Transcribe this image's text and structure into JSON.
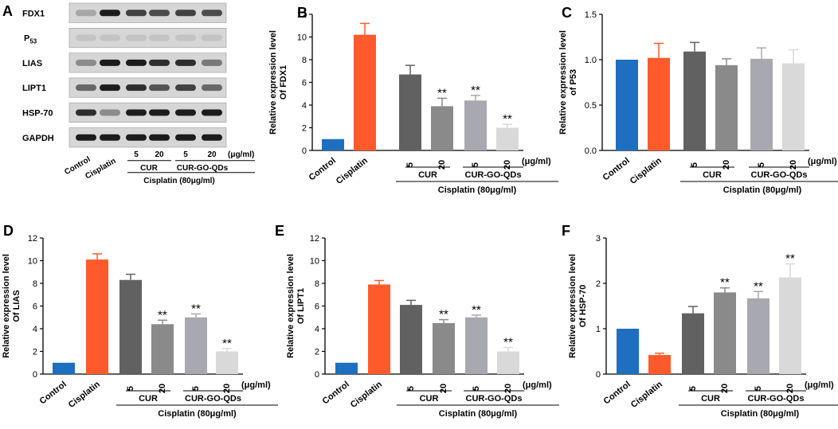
{
  "colors": {
    "control": "#1f6fc0",
    "cisplatin": "#ff5a2b",
    "cur5": "#616161",
    "cur20": "#8a8a8a",
    "qd5": "#a8a8b0",
    "qd20": "#d9d9d9",
    "blotBg": "#d6d6d6",
    "band": "#1c1c1c"
  },
  "shared": {
    "categories": [
      "Control",
      "Cisplatin",
      "5",
      "20",
      "5",
      "20"
    ],
    "unit": "(μg/ml)",
    "group_cur": "CUR",
    "group_qd": "CUR-GO-QDs",
    "treatment": "Cisplatin (80μg/ml)",
    "sig": "**"
  },
  "blot": {
    "panel": "A",
    "proteins": [
      "FDX1",
      "P53",
      "LIAS",
      "LIPT1",
      "HSP-70",
      "GAPDH"
    ],
    "lanes": [
      "Control",
      "Cisplatin",
      "5",
      "20",
      "5",
      "20"
    ],
    "intensities": [
      [
        0.25,
        1.0,
        0.8,
        0.75,
        0.8,
        0.75
      ],
      [
        0.1,
        0.1,
        0.1,
        0.1,
        0.1,
        0.1
      ],
      [
        0.4,
        1.0,
        1.0,
        0.9,
        0.9,
        0.5
      ],
      [
        0.6,
        1.0,
        0.9,
        0.7,
        0.8,
        0.6
      ],
      [
        0.9,
        0.4,
        1.0,
        1.0,
        1.0,
        1.0
      ],
      [
        1.0,
        1.0,
        1.0,
        1.0,
        1.0,
        1.0
      ]
    ]
  },
  "chart_data": [
    {
      "panel": "B",
      "type": "bar",
      "ylabel": "Relative expression level",
      "ylabel2": "Of FDX1",
      "ylim": [
        0,
        12
      ],
      "yticks": [
        0,
        2,
        4,
        6,
        8,
        10,
        12
      ],
      "values": [
        1.0,
        10.2,
        6.7,
        3.9,
        4.4,
        2.0
      ],
      "errors": [
        0,
        1.0,
        0.8,
        0.7,
        0.45,
        0.3
      ],
      "significance": [
        false,
        false,
        false,
        true,
        true,
        true
      ]
    },
    {
      "panel": "C",
      "type": "bar",
      "ylabel": "Relative expression level",
      "ylabel2": "of P53",
      "ylim": [
        0,
        1.5
      ],
      "yticks": [
        0.0,
        0.5,
        1.0,
        1.5
      ],
      "values": [
        1.0,
        1.02,
        1.09,
        0.94,
        1.01,
        0.96
      ],
      "errors": [
        0,
        0.16,
        0.1,
        0.07,
        0.12,
        0.15
      ],
      "significance": [
        false,
        false,
        false,
        false,
        false,
        false
      ]
    },
    {
      "panel": "D",
      "type": "bar",
      "ylabel": "Relative expression level",
      "ylabel2": "Of LIAS",
      "ylim": [
        0,
        12
      ],
      "yticks": [
        0,
        2,
        4,
        6,
        8,
        10,
        12
      ],
      "values": [
        1.0,
        10.1,
        8.3,
        4.4,
        5.0,
        2.0
      ],
      "errors": [
        0,
        0.5,
        0.5,
        0.35,
        0.3,
        0.25
      ],
      "significance": [
        false,
        false,
        false,
        true,
        true,
        true
      ]
    },
    {
      "panel": "E",
      "type": "bar",
      "ylabel": "Relative expression level",
      "ylabel2": "Of LIPT1",
      "ylim": [
        0,
        12
      ],
      "yticks": [
        0,
        2,
        4,
        6,
        8,
        10,
        12
      ],
      "values": [
        1.0,
        7.9,
        6.1,
        4.5,
        5.0,
        2.0
      ],
      "errors": [
        0,
        0.35,
        0.4,
        0.3,
        0.2,
        0.35
      ],
      "significance": [
        false,
        false,
        false,
        true,
        true,
        true
      ]
    },
    {
      "panel": "F",
      "type": "bar",
      "ylabel": "Relative expression level",
      "ylabel2": "Of HSP-70",
      "ylim": [
        0,
        3
      ],
      "yticks": [
        0,
        1,
        2,
        3
      ],
      "values": [
        1.0,
        0.42,
        1.34,
        1.8,
        1.67,
        2.13
      ],
      "errors": [
        0,
        0.04,
        0.15,
        0.1,
        0.15,
        0.3
      ],
      "significance": [
        false,
        false,
        false,
        true,
        true,
        true
      ]
    }
  ]
}
